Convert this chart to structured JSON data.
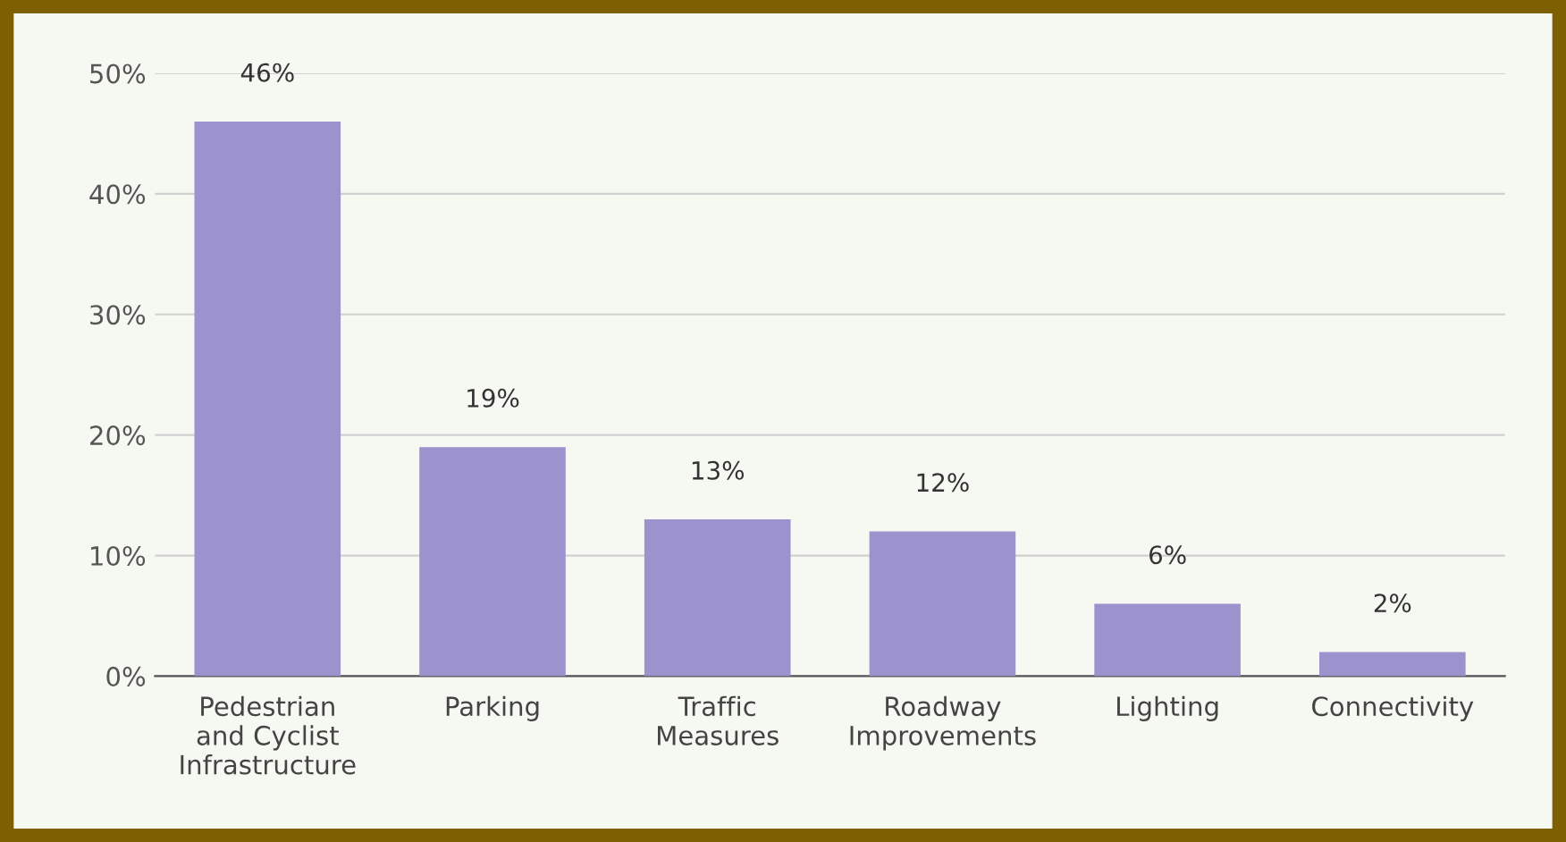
{
  "chart_data": {
    "type": "bar",
    "categories": [
      "Pedestrian\nand Cyclist\nInfrastructure",
      "Parking",
      "Traffic\nMeasures",
      "Roadway\nImprovements",
      "Lighting",
      "Connectivity"
    ],
    "values": [
      46,
      19,
      13,
      12,
      6,
      2
    ],
    "value_labels": [
      "46%",
      "19%",
      "13%",
      "12%",
      "6%",
      "2%"
    ],
    "color": "#9c92cd",
    "ylim": [
      0,
      50
    ],
    "yticks": [
      {
        "value": 0,
        "label": "0%"
      },
      {
        "value": 10,
        "label": "10%"
      },
      {
        "value": 20,
        "label": "20%"
      },
      {
        "value": 30,
        "label": "30%"
      },
      {
        "value": 40,
        "label": "40%"
      },
      {
        "value": 50,
        "label": "50%"
      }
    ],
    "grid": "y"
  }
}
